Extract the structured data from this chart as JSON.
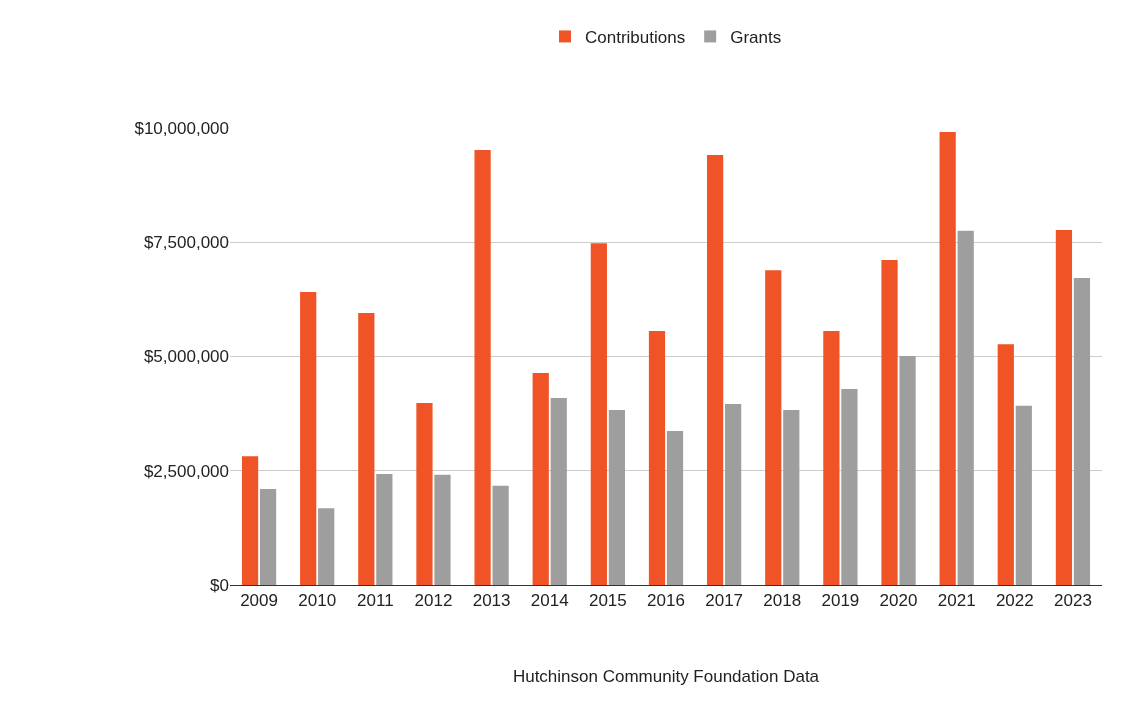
{
  "chart_data": {
    "type": "bar",
    "xlabel": "Hutchinson Community Foundation Data",
    "categories": [
      "2009",
      "2010",
      "2011",
      "2012",
      "2013",
      "2014",
      "2015",
      "2016",
      "2017",
      "2018",
      "2019",
      "2020",
      "2021",
      "2022",
      "2023"
    ],
    "series": [
      {
        "name": "Contributions",
        "color": "#f05326",
        "values": [
          2820000,
          6410000,
          5950000,
          3980000,
          9520000,
          4640000,
          7480000,
          5560000,
          9410000,
          6890000,
          5560000,
          7110000,
          9910000,
          5270000,
          7770000
        ]
      },
      {
        "name": "Grants",
        "color": "#9e9e9e",
        "values": [
          2100000,
          1680000,
          2430000,
          2410000,
          2170000,
          4090000,
          3830000,
          3370000,
          3960000,
          3830000,
          4290000,
          5010000,
          7750000,
          3920000,
          6720000
        ]
      }
    ],
    "ylim": [
      0,
      10000000
    ],
    "yticks": [
      {
        "value": 0,
        "label": "$0"
      },
      {
        "value": 2500000,
        "label": "$2,500,000"
      },
      {
        "value": 5000000,
        "label": "$5,000,000"
      },
      {
        "value": 7500000,
        "label": "$7,500,000"
      },
      {
        "value": 10000000,
        "label": "$10,000,000"
      }
    ],
    "grid": "y",
    "legend": "top"
  }
}
